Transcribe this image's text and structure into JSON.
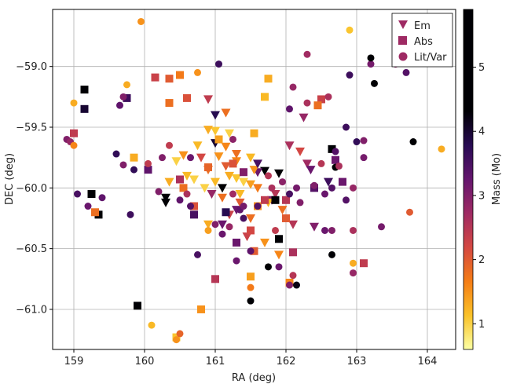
{
  "chart_data": {
    "type": "scatter",
    "title": "",
    "xlabel": "RA (deg)",
    "ylabel": "DEC (deg)",
    "colorbar_label": "Mass (Mo)",
    "xlim": [
      158.7,
      164.4
    ],
    "ylim": [
      -61.33,
      -58.53
    ],
    "xticks": [
      159,
      160,
      161,
      162,
      163,
      164
    ],
    "yticks": [
      -59.0,
      -59.5,
      -60.0,
      -60.5,
      -61.0
    ],
    "colorbar_range": [
      0.6,
      5.9
    ],
    "colorbar_ticks": [
      1,
      2,
      3,
      4,
      5
    ],
    "grid": true,
    "legend_location": "top-right",
    "series": [
      {
        "name": "Em",
        "marker": "triangle-down",
        "points": [
          [
            160.3,
            -60.12,
            5.2
          ],
          [
            160.3,
            -60.08,
            5.3
          ],
          [
            161.1,
            -60.0,
            5.6
          ],
          [
            161.9,
            -59.88,
            5.1
          ],
          [
            161.7,
            -59.86,
            4.7
          ],
          [
            161.6,
            -59.87,
            3.2
          ],
          [
            161.8,
            -60.1,
            3.0
          ],
          [
            161.3,
            -60.18,
            3.2
          ],
          [
            161.0,
            -59.63,
            4.0
          ],
          [
            161.2,
            -59.55,
            1.0
          ],
          [
            161.0,
            -59.53,
            1.1
          ],
          [
            160.9,
            -59.52,
            1.3
          ],
          [
            160.75,
            -59.65,
            1.2
          ],
          [
            160.55,
            -59.73,
            1.5
          ],
          [
            160.8,
            -59.75,
            2.2
          ],
          [
            160.9,
            -59.85,
            1.8
          ],
          [
            160.6,
            -59.9,
            1.2
          ],
          [
            160.45,
            -59.78,
            1.0
          ],
          [
            160.35,
            -59.95,
            1.3
          ],
          [
            160.7,
            -59.93,
            1.0
          ],
          [
            160.85,
            -60.0,
            1.0
          ],
          [
            161.0,
            -59.95,
            1.2
          ],
          [
            161.2,
            -59.9,
            1.3
          ],
          [
            161.3,
            -59.92,
            1.1
          ],
          [
            161.4,
            -59.95,
            1.0
          ],
          [
            161.5,
            -59.97,
            1.4
          ],
          [
            161.35,
            -60.05,
            1.2
          ],
          [
            161.1,
            -60.08,
            1.8
          ],
          [
            160.95,
            -60.05,
            2.8
          ],
          [
            161.55,
            -59.85,
            1.5
          ],
          [
            161.5,
            -59.75,
            1.2
          ],
          [
            161.3,
            -59.78,
            1.6
          ],
          [
            161.15,
            -59.82,
            2.0
          ],
          [
            161.05,
            -59.74,
            1.5
          ],
          [
            161.15,
            -59.66,
            1.6
          ],
          [
            161.3,
            -59.72,
            1.8
          ],
          [
            161.35,
            -60.12,
            2.0
          ],
          [
            161.2,
            -60.22,
            2.3
          ],
          [
            161.1,
            -60.3,
            3.2
          ],
          [
            160.9,
            -60.3,
            1.3
          ],
          [
            161.5,
            -60.25,
            1.8
          ],
          [
            161.45,
            -60.4,
            2.3
          ],
          [
            161.85,
            -60.05,
            2.5
          ],
          [
            161.95,
            -60.18,
            1.8
          ],
          [
            162.1,
            -60.3,
            2.5
          ],
          [
            161.6,
            -60.0,
            1.7
          ],
          [
            161.75,
            -60.12,
            1.2
          ],
          [
            161.9,
            -60.55,
            1.6
          ],
          [
            161.7,
            -60.45,
            1.5
          ],
          [
            162.4,
            -60.32,
            3.0
          ],
          [
            162.05,
            -59.65,
            2.6
          ],
          [
            161.15,
            -59.38,
            1.8
          ],
          [
            161.0,
            -59.4,
            3.8
          ],
          [
            160.9,
            -59.27,
            2.4
          ],
          [
            162.2,
            -59.7,
            2.2
          ],
          [
            162.25,
            -59.42,
            2.8
          ],
          [
            161.6,
            -59.8,
            3.5
          ],
          [
            162.3,
            -59.8,
            2.7
          ],
          [
            162.6,
            -59.95,
            3.6
          ],
          [
            162.35,
            -59.85,
            3.2
          ]
        ]
      },
      {
        "name": "Abs",
        "marker": "square",
        "points": [
          [
            159.15,
            -59.19,
            4.5
          ],
          [
            159.15,
            -59.35,
            4.0
          ],
          [
            159.0,
            -59.55,
            2.4
          ],
          [
            159.25,
            -60.05,
            4.8
          ],
          [
            159.35,
            -60.22,
            4.9
          ],
          [
            159.3,
            -60.2,
            1.8
          ],
          [
            159.85,
            -59.75,
            1.3
          ],
          [
            159.9,
            -60.97,
            4.8
          ],
          [
            159.75,
            -59.26,
            3.6
          ],
          [
            160.15,
            -59.09,
            2.3
          ],
          [
            160.35,
            -59.1,
            2.0
          ],
          [
            160.5,
            -59.07,
            1.7
          ],
          [
            160.6,
            -59.26,
            2.1
          ],
          [
            160.35,
            -59.3,
            1.8
          ],
          [
            160.05,
            -59.85,
            3.3
          ],
          [
            160.55,
            -60.0,
            1.8
          ],
          [
            160.7,
            -60.15,
            2.1
          ],
          [
            160.8,
            -61.0,
            1.5
          ],
          [
            160.45,
            -61.23,
            1.1
          ],
          [
            161.0,
            -60.75,
            2.5
          ],
          [
            161.5,
            -60.73,
            1.4
          ],
          [
            161.55,
            -60.52,
            2.0
          ],
          [
            161.5,
            -60.35,
            2.2
          ],
          [
            161.55,
            -59.55,
            1.3
          ],
          [
            161.7,
            -59.25,
            1.2
          ],
          [
            161.75,
            -59.1,
            1.3
          ],
          [
            161.3,
            -60.45,
            3.2
          ],
          [
            161.6,
            -60.15,
            1.5
          ],
          [
            161.7,
            -60.1,
            2.4
          ],
          [
            162.0,
            -60.25,
            2.0
          ],
          [
            162.1,
            -60.53,
            2.6
          ],
          [
            162.05,
            -60.78,
            1.6
          ],
          [
            162.4,
            -60.0,
            3.4
          ],
          [
            162.5,
            -59.27,
            2.3
          ],
          [
            162.45,
            -59.32,
            1.8
          ],
          [
            162.7,
            -59.77,
            3.2
          ],
          [
            162.65,
            -59.68,
            5.8
          ],
          [
            163.1,
            -60.62,
            2.4
          ],
          [
            162.8,
            -59.95,
            3.2
          ],
          [
            161.05,
            -59.6,
            1.4
          ],
          [
            160.9,
            -59.83,
            1.9
          ],
          [
            161.25,
            -59.8,
            2.1
          ],
          [
            160.5,
            -59.93,
            2.6
          ],
          [
            161.85,
            -60.1,
            4.4
          ],
          [
            161.9,
            -60.42,
            4.5
          ],
          [
            162.0,
            -60.1,
            2.5
          ],
          [
            161.4,
            -59.87,
            3.0
          ],
          [
            160.7,
            -60.22,
            3.5
          ],
          [
            161.15,
            -60.2,
            3.8
          ]
        ]
      },
      {
        "name": "Lit/Var",
        "marker": "circle",
        "points": [
          [
            159.0,
            -59.3,
            1.3
          ],
          [
            158.9,
            -59.6,
            3.0
          ],
          [
            158.95,
            -59.62,
            2.8
          ],
          [
            159.0,
            -59.65,
            1.6
          ],
          [
            159.05,
            -60.05,
            3.5
          ],
          [
            159.2,
            -60.15,
            3.2
          ],
          [
            159.4,
            -60.08,
            3.3
          ],
          [
            159.75,
            -59.15,
            1.3
          ],
          [
            159.7,
            -59.25,
            3.0
          ],
          [
            159.65,
            -59.32,
            3.3
          ],
          [
            159.6,
            -59.72,
            3.7
          ],
          [
            159.7,
            -59.81,
            3.0
          ],
          [
            159.8,
            -60.22,
            3.6
          ],
          [
            159.95,
            -58.63,
            1.5
          ],
          [
            159.85,
            -59.85,
            3.7
          ],
          [
            160.05,
            -59.8,
            2.4
          ],
          [
            160.1,
            -61.13,
            1.2
          ],
          [
            160.5,
            -61.2,
            1.9
          ],
          [
            160.45,
            -61.25,
            1.5
          ],
          [
            160.75,
            -59.05,
            1.5
          ],
          [
            160.75,
            -60.55,
            3.5
          ],
          [
            160.65,
            -59.75,
            3.2
          ],
          [
            160.6,
            -60.05,
            2.6
          ],
          [
            161.05,
            -58.98,
            3.6
          ],
          [
            160.9,
            -60.35,
            1.4
          ],
          [
            161.3,
            -60.6,
            3.2
          ],
          [
            161.5,
            -60.93,
            4.8
          ],
          [
            161.5,
            -60.82,
            1.7
          ],
          [
            161.5,
            -60.52,
            3.3
          ],
          [
            161.6,
            -60.15,
            3.4
          ],
          [
            161.85,
            -60.35,
            2.4
          ],
          [
            161.75,
            -60.65,
            4.9
          ],
          [
            161.9,
            -60.65,
            3.2
          ],
          [
            162.05,
            -60.8,
            3.0
          ],
          [
            162.15,
            -60.8,
            4.2
          ],
          [
            162.1,
            -60.72,
            2.5
          ],
          [
            162.05,
            -59.35,
            3.3
          ],
          [
            162.1,
            -59.17,
            2.8
          ],
          [
            162.3,
            -59.3,
            2.6
          ],
          [
            162.3,
            -58.9,
            2.7
          ],
          [
            162.6,
            -59.25,
            2.6
          ],
          [
            162.7,
            -59.7,
            3.4
          ],
          [
            162.5,
            -59.8,
            2.5
          ],
          [
            162.7,
            -59.83,
            5.3
          ],
          [
            162.65,
            -60.55,
            5.2
          ],
          [
            162.85,
            -59.5,
            3.6
          ],
          [
            162.9,
            -58.7,
            1.1
          ],
          [
            162.9,
            -59.07,
            3.6
          ],
          [
            162.95,
            -60.0,
            2.8
          ],
          [
            162.95,
            -60.35,
            2.6
          ],
          [
            162.95,
            -60.62,
            1.3
          ],
          [
            162.95,
            -60.7,
            2.8
          ],
          [
            163.0,
            -59.62,
            3.7
          ],
          [
            163.1,
            -59.61,
            3.0
          ],
          [
            163.1,
            -59.75,
            3.1
          ],
          [
            163.2,
            -58.98,
            3.1
          ],
          [
            163.25,
            -59.14,
            4.8
          ],
          [
            163.35,
            -60.32,
            3.1
          ],
          [
            163.55,
            -58.98,
            2.9
          ],
          [
            163.7,
            -59.05,
            3.4
          ],
          [
            163.75,
            -60.2,
            2.0
          ],
          [
            163.8,
            -59.62,
            5.5
          ],
          [
            164.2,
            -59.68,
            1.3
          ],
          [
            163.2,
            -58.93,
            4.4
          ],
          [
            162.55,
            -60.35,
            3.2
          ],
          [
            162.65,
            -60.35,
            3.0
          ],
          [
            162.85,
            -60.1,
            3.4
          ],
          [
            161.35,
            -60.18,
            3.3
          ],
          [
            161.4,
            -60.15,
            3.1
          ],
          [
            161.25,
            -59.6,
            2.9
          ],
          [
            162.15,
            -60.0,
            3.1
          ],
          [
            162.05,
            -60.05,
            3.5
          ],
          [
            162.2,
            -60.12,
            3.0
          ],
          [
            161.8,
            -60.0,
            2.6
          ],
          [
            162.4,
            -59.98,
            3.0
          ],
          [
            160.5,
            -60.1,
            3.3
          ],
          [
            160.65,
            -60.15,
            3.4
          ],
          [
            161.0,
            -60.3,
            3.0
          ],
          [
            161.4,
            -60.25,
            3.5
          ],
          [
            161.2,
            -60.32,
            2.8
          ],
          [
            160.25,
            -59.75,
            3.0
          ],
          [
            160.35,
            -59.65,
            2.4
          ],
          [
            160.2,
            -60.03,
            3.0
          ],
          [
            161.1,
            -60.38,
            3.2
          ],
          [
            161.25,
            -60.05,
            2.7
          ],
          [
            161.75,
            -59.9,
            2.5
          ],
          [
            162.55,
            -60.05,
            3.2
          ],
          [
            162.65,
            -60.0,
            3.4
          ],
          [
            161.95,
            -59.95,
            2.9
          ],
          [
            162.75,
            -59.82,
            2.6
          ]
        ]
      }
    ]
  }
}
